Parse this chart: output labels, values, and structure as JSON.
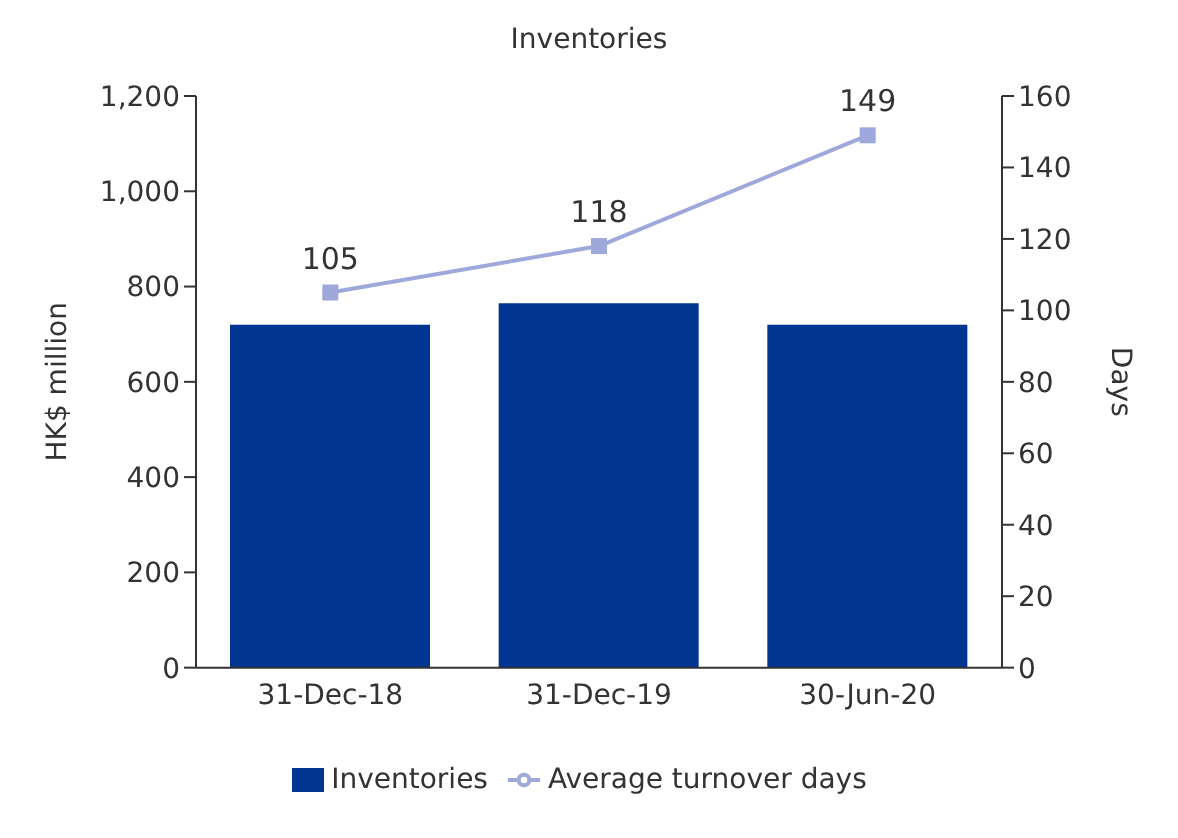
{
  "chart_data": {
    "type": "bar",
    "title": "Inventories",
    "categories": [
      "31-Dec-18",
      "31-Dec-19",
      "30-Jun-20"
    ],
    "series": [
      {
        "name": "Inventories",
        "color": "#003591",
        "values": [
          720,
          765,
          720
        ]
      },
      {
        "name": "Average turnover days",
        "type": "line",
        "axis": "y2",
        "color": "#9fa8da",
        "values": [
          105,
          118,
          149
        ],
        "value_labels": [
          "105",
          "118",
          "149"
        ],
        "marker": "square"
      }
    ],
    "ylabel": "HK$ million",
    "y2label": "Days",
    "ylim": [
      0,
      1200
    ],
    "yticks": [
      0,
      200,
      400,
      600,
      800,
      {
        "value": 1000,
        "label": "1,000"
      },
      {
        "value": 1200,
        "label": "1,200"
      }
    ],
    "y2lim": [
      0,
      160
    ],
    "y2ticks": [
      0,
      20,
      40,
      60,
      80,
      100,
      120,
      140,
      160
    ],
    "grid": false,
    "legend": "bottom"
  }
}
